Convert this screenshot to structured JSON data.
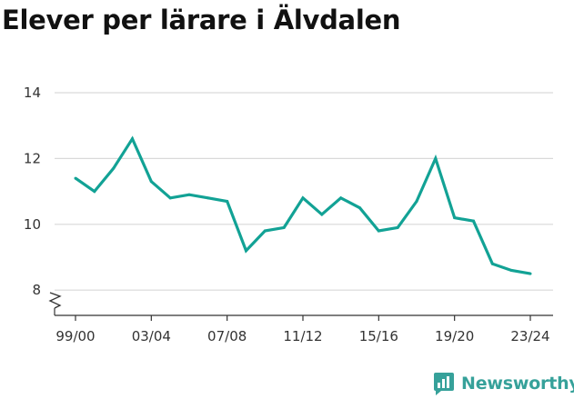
{
  "title": "Elever per lärare i Älvdalen",
  "brand": {
    "name": "Newsworthy",
    "icon": "newsworthy-chart-icon",
    "color": "#36a19a"
  },
  "colors": {
    "line": "#12a295",
    "grid": "#d9d9d9",
    "axis": "#333333"
  },
  "chart_data": {
    "type": "line",
    "title": "Elever per lärare i Älvdalen",
    "xlabel": "",
    "ylabel": "",
    "x": [
      "99/00",
      "00/01",
      "01/02",
      "02/03",
      "03/04",
      "04/05",
      "05/06",
      "06/07",
      "07/08",
      "08/09",
      "09/10",
      "10/11",
      "11/12",
      "12/13",
      "13/14",
      "14/15",
      "15/16",
      "16/17",
      "17/18",
      "18/19",
      "19/20",
      "20/21",
      "21/22",
      "22/23",
      "23/24"
    ],
    "x_tick_labels": [
      "99/00",
      "03/04",
      "07/08",
      "11/12",
      "15/16",
      "19/20",
      "23/24"
    ],
    "series": [
      {
        "values": [
          11.4,
          11.0,
          11.7,
          12.6,
          11.3,
          10.8,
          10.9,
          10.8,
          10.7,
          9.2,
          9.8,
          9.9,
          10.8,
          10.3,
          10.8,
          10.5,
          9.8,
          9.9,
          10.7,
          12.0,
          10.2,
          10.1,
          8.8,
          8.6,
          8.5
        ]
      }
    ],
    "yticks": [
      8,
      10,
      12,
      14
    ],
    "ylim": [
      7.5,
      14
    ],
    "axis_break": true,
    "grid": true,
    "legend": "none"
  }
}
